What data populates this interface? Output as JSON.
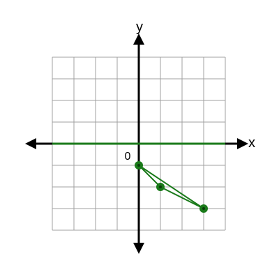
{
  "graph": {
    "x_axis_label": "x",
    "y_axis_label": "y",
    "origin_label": "0",
    "grid": true,
    "x_range": [
      -4,
      4
    ],
    "y_range": [
      -4,
      4
    ],
    "colors": {
      "grid": "#a0a0a0",
      "axis": "#000000",
      "plot": "#1a7a1a",
      "point_center": "#0b3d0b"
    }
  },
  "chart_data": {
    "type": "line",
    "series": [
      {
        "values": [
          {
            "x": -4,
            "y": 0
          },
          {
            "x": 4,
            "y": 0
          }
        ]
      },
      {
        "values": [
          {
            "x": 0,
            "y": -1
          },
          {
            "x": 1,
            "y": -2
          },
          {
            "x": 3,
            "y": -3
          },
          {
            "x": 0,
            "y": -1
          }
        ]
      }
    ],
    "points": [
      {
        "x": 0,
        "y": -1
      },
      {
        "x": 1,
        "y": -2
      },
      {
        "x": 3,
        "y": -3
      }
    ],
    "xlim": [
      -4,
      4
    ],
    "ylim": [
      -4,
      4
    ]
  }
}
